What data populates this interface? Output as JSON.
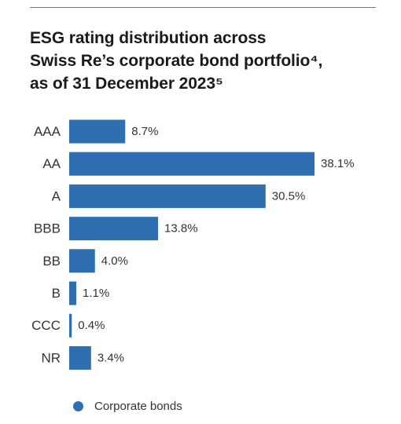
{
  "title_lines": [
    "ESG rating distribution across",
    "Swiss Re’s corporate bond portfolio⁴,",
    "as of 31 December 2023⁵"
  ],
  "colors": {
    "bar": "#2f6fb1",
    "accent_rule": "#3a83c0",
    "text": "#1a1a1a",
    "label": "#333333"
  },
  "chart_data": {
    "type": "bar",
    "orientation": "horizontal",
    "categories": [
      "AAA",
      "AA",
      "A",
      "BBB",
      "BB",
      "B",
      "CCC",
      "NR"
    ],
    "series": [
      {
        "name": "Corporate bonds",
        "values": [
          8.7,
          38.1,
          30.5,
          13.8,
          4.0,
          1.1,
          0.4,
          3.4
        ],
        "labels": [
          "8.7%",
          "38.1%",
          "30.5%",
          "13.8%",
          "4.0%",
          "1.1%",
          "0.4%",
          "3.4%"
        ]
      }
    ],
    "unit": "%",
    "xlim": [
      0,
      38.1
    ],
    "legend": "bottom-left",
    "grid": false
  },
  "legend": {
    "label": "Corporate bonds"
  }
}
